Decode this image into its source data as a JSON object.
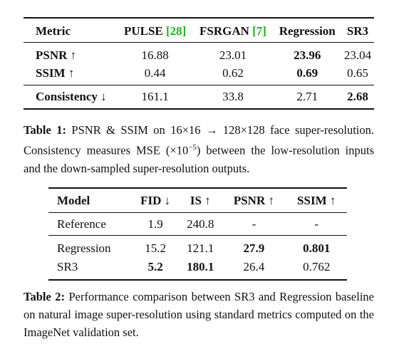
{
  "table1": {
    "headers": {
      "metric": "Metric",
      "pulse": "PULSE",
      "pulse_cite": "[28]",
      "fsrgan": "FSRGAN",
      "fsrgan_cite": "[7]",
      "regression": "Regression",
      "sr3": "SR3"
    },
    "rows": [
      {
        "metric": "PSNR ↑",
        "pulse": "16.88",
        "fsrgan": "23.01",
        "regression": "23.96",
        "sr3": "23.04"
      },
      {
        "metric": "SSIM ↑",
        "pulse": "0.44",
        "fsrgan": "0.62",
        "regression": "0.69",
        "sr3": "0.65"
      },
      {
        "metric": "Consistency ↓",
        "pulse": "161.1",
        "fsrgan": "33.8",
        "regression": "2.71",
        "sr3": "2.68"
      }
    ],
    "caption_label": "Table 1:",
    "caption_text_1": "PSNR & SSIM on 16×16 → 128×128 face super-resolution. Consistency measures MSE (×10",
    "caption_sup": "−5",
    "caption_text_2": ") between the low-resolution inputs and the down-sampled super-resolution outputs."
  },
  "table2": {
    "headers": {
      "model": "Model",
      "fid": "FID ↓",
      "is": "IS ↑",
      "psnr": "PSNR ↑",
      "ssim": "SSIM ↑"
    },
    "rows": [
      {
        "model": "Reference",
        "fid": "1.9",
        "is": "240.8",
        "psnr": "-",
        "ssim": "-"
      },
      {
        "model": "Regression",
        "fid": "15.2",
        "is": "121.1",
        "psnr": "27.9",
        "ssim": "0.801"
      },
      {
        "model": "SR3",
        "fid": "5.2",
        "is": "180.1",
        "psnr": "26.4",
        "ssim": "0.762"
      }
    ],
    "caption_label": "Table 2:",
    "caption_text": "Performance comparison between SR3 and Regression baseline on natural image super-resolution using standard metrics computed on the ImageNet validation set."
  },
  "colors": {
    "citation": "#1bb31b"
  }
}
